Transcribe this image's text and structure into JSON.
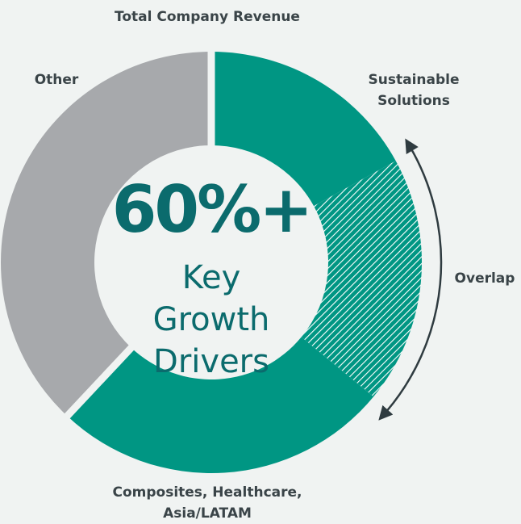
{
  "chart_data": {
    "type": "donut",
    "title": "Total Company Revenue",
    "categories": [
      "Sustainable Solutions",
      "Overlap",
      "Composites, Healthcare, Asia/LATAM",
      "Other"
    ],
    "values": [
      17,
      19,
      26,
      38
    ],
    "colors": [
      "#009683",
      "#009683",
      "#009683",
      "#a7a9ac"
    ],
    "hatched": [
      false,
      true,
      false,
      false
    ],
    "center_value": "60%+",
    "center_text": "Key Growth Drivers"
  }
}
